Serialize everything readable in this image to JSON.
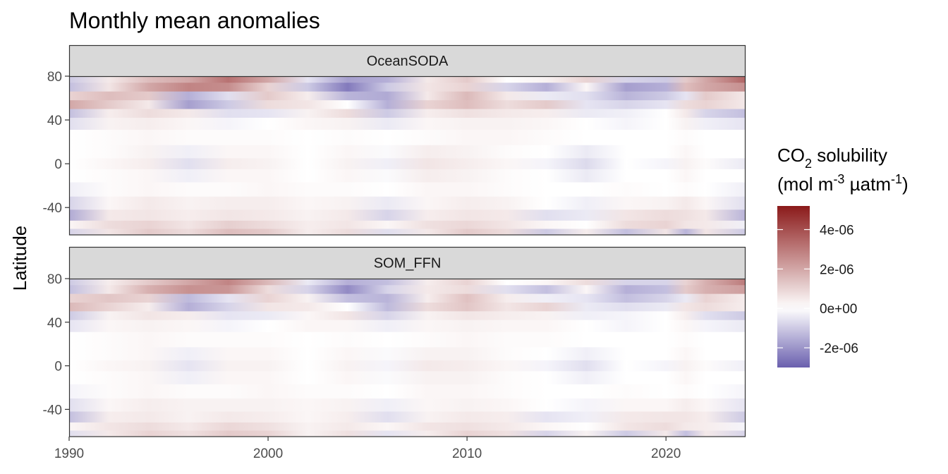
{
  "chart_data": {
    "type": "heatmap",
    "title": "Monthly mean anomalies",
    "ylabel": "Latitude",
    "xlabel": "",
    "xlim": [
      1990,
      2024
    ],
    "ylim": [
      -65,
      80
    ],
    "x_ticks": [
      1990,
      2000,
      2010,
      2020
    ],
    "x_tick_labels": [
      "1990",
      "2000",
      "2010",
      "2020"
    ],
    "y_ticks": [
      80,
      40,
      0,
      -40
    ],
    "y_tick_labels": [
      "80",
      "40",
      "0",
      "-40"
    ],
    "grid": false,
    "panels": [
      {
        "name": "OceanSODA",
        "bands": [
          {
            "lat": 78,
            "values": [
              -1.0,
              0.5,
              1.5,
              2.0,
              3.2,
              2.0,
              -0.5,
              -1.8,
              -1.5,
              0.5,
              1.2,
              0.0,
              0.3,
              1.0,
              -0.8,
              -1.0,
              1.2,
              2.0,
              3.5
            ]
          },
          {
            "lat": 70,
            "values": [
              -1.2,
              0.6,
              2.0,
              2.8,
              2.6,
              1.0,
              -1.0,
              -2.5,
              -1.0,
              0.6,
              1.0,
              -0.8,
              -1.5,
              0.2,
              -1.8,
              -1.5,
              1.5,
              2.0,
              2.5
            ]
          },
          {
            "lat": 62,
            "values": [
              1.0,
              1.5,
              1.2,
              -1.5,
              -0.6,
              1.2,
              0.4,
              -1.4,
              -1.6,
              0.5,
              1.6,
              0.5,
              -0.4,
              -0.6,
              -1.4,
              -1.0,
              -0.5,
              1.2,
              0.5
            ]
          },
          {
            "lat": 54,
            "values": [
              2.0,
              1.2,
              0.5,
              -1.8,
              -1.0,
              0.8,
              0.6,
              0.0,
              -1.5,
              1.0,
              1.5,
              0.8,
              1.2,
              -0.5,
              -0.8,
              -0.5,
              0.8,
              1.0,
              0.5
            ]
          },
          {
            "lat": 46,
            "values": [
              -1.2,
              0.4,
              0.8,
              0.5,
              -0.6,
              -0.5,
              0.3,
              0.8,
              -1.0,
              0.4,
              0.7,
              0.5,
              0.4,
              -0.4,
              -0.3,
              0.0,
              0.5,
              -0.8,
              -1.2
            ]
          },
          {
            "lat": 38,
            "values": [
              -0.6,
              0.3,
              0.4,
              0.2,
              -0.2,
              0.0,
              0.2,
              0.3,
              -0.4,
              0.2,
              0.3,
              0.3,
              0.2,
              0.0,
              -0.2,
              0.0,
              0.3,
              -0.3,
              -0.5
            ]
          },
          {
            "lat": 24,
            "values": [
              0.0,
              0.1,
              0.2,
              0.1,
              0.1,
              0.1,
              0.0,
              0.1,
              0.0,
              0.1,
              0.2,
              0.2,
              0.1,
              0.0,
              0.0,
              0.0,
              0.1,
              0.0,
              0.0
            ]
          },
          {
            "lat": 10,
            "values": [
              0.0,
              0.1,
              0.3,
              -0.3,
              0.2,
              0.2,
              0.0,
              0.2,
              -0.1,
              0.4,
              0.3,
              0.1,
              0.0,
              -0.4,
              0.0,
              0.0,
              0.2,
              0.0,
              0.0
            ]
          },
          {
            "lat": 0,
            "values": [
              0.0,
              0.2,
              0.4,
              -0.6,
              0.4,
              0.3,
              0.0,
              0.3,
              -0.3,
              0.6,
              0.4,
              0.2,
              -0.2,
              -0.7,
              0.0,
              -0.2,
              0.3,
              0.1,
              -0.4
            ]
          },
          {
            "lat": -10,
            "values": [
              0.0,
              0.1,
              0.2,
              -0.3,
              0.2,
              0.2,
              0.0,
              0.2,
              -0.1,
              0.4,
              0.3,
              0.1,
              0.0,
              -0.4,
              0.0,
              0.0,
              0.2,
              0.0,
              0.0
            ]
          },
          {
            "lat": -24,
            "values": [
              -0.3,
              0.1,
              0.2,
              0.1,
              0.1,
              0.2,
              0.1,
              0.1,
              0.0,
              0.2,
              0.2,
              0.1,
              0.0,
              0.0,
              0.1,
              0.0,
              0.1,
              0.0,
              -0.3
            ]
          },
          {
            "lat": -36,
            "values": [
              -0.8,
              0.2,
              0.5,
              0.3,
              0.4,
              0.4,
              0.2,
              0.3,
              -0.4,
              0.2,
              0.4,
              0.3,
              0.0,
              -0.3,
              0.2,
              0.3,
              0.5,
              0.2,
              -0.6
            ]
          },
          {
            "lat": -48,
            "values": [
              -1.6,
              0.5,
              0.6,
              0.4,
              0.6,
              0.5,
              0.3,
              0.5,
              -0.8,
              0.4,
              0.6,
              0.5,
              -0.6,
              -0.4,
              0.6,
              0.8,
              0.7,
              0.5,
              -1.4
            ]
          },
          {
            "lat": -56,
            "values": [
              0.2,
              0.8,
              1.0,
              0.6,
              1.1,
              0.8,
              0.4,
              0.6,
              0.2,
              0.7,
              0.9,
              0.6,
              0.2,
              0.0,
              0.8,
              1.0,
              0.6,
              0.5,
              -0.3
            ]
          },
          {
            "lat": -63,
            "values": [
              -0.8,
              0.6,
              1.2,
              0.8,
              1.5,
              1.2,
              0.4,
              0.8,
              -0.6,
              0.5,
              1.2,
              0.8,
              -1.0,
              0.4,
              -1.2,
              0.6,
              -1.4,
              0.6,
              -1.0
            ]
          }
        ]
      },
      {
        "name": "SOM_FFN",
        "bands": [
          {
            "lat": 78,
            "values": [
              -1.0,
              0.4,
              1.2,
              2.0,
              2.8,
              1.6,
              -0.4,
              -1.5,
              -1.2,
              0.4,
              1.0,
              0.0,
              0.2,
              0.8,
              -0.8,
              -0.8,
              1.0,
              1.8,
              3.0
            ]
          },
          {
            "lat": 70,
            "values": [
              -1.2,
              0.5,
              1.8,
              2.5,
              2.4,
              0.8,
              -0.8,
              -2.2,
              -0.8,
              0.5,
              0.8,
              -0.6,
              -1.2,
              0.2,
              -1.5,
              -1.2,
              1.2,
              1.8,
              2.2
            ]
          },
          {
            "lat": 62,
            "values": [
              1.0,
              1.3,
              1.0,
              -1.3,
              -0.5,
              1.0,
              0.3,
              -1.2,
              -1.4,
              0.4,
              1.4,
              0.4,
              -0.3,
              -0.5,
              -1.2,
              -0.8,
              -0.4,
              1.0,
              0.4
            ]
          },
          {
            "lat": 54,
            "values": [
              1.6,
              1.0,
              0.4,
              -1.5,
              -0.8,
              0.6,
              0.5,
              0.0,
              -1.3,
              0.8,
              1.3,
              0.6,
              1.0,
              -0.4,
              -0.6,
              -0.4,
              0.6,
              0.8,
              0.4
            ]
          },
          {
            "lat": 46,
            "values": [
              -1.0,
              0.3,
              0.6,
              0.4,
              -0.5,
              -0.4,
              0.2,
              0.6,
              -0.8,
              0.3,
              0.6,
              0.4,
              0.3,
              -0.3,
              -0.2,
              0.0,
              0.4,
              -0.6,
              -1.0
            ]
          },
          {
            "lat": 38,
            "values": [
              -0.5,
              0.2,
              0.3,
              0.2,
              -0.2,
              0.0,
              0.2,
              0.2,
              -0.3,
              0.2,
              0.3,
              0.2,
              0.2,
              0.0,
              -0.2,
              0.0,
              0.2,
              -0.2,
              -0.4
            ]
          },
          {
            "lat": 24,
            "values": [
              0.0,
              0.1,
              0.2,
              0.1,
              0.1,
              0.1,
              0.0,
              0.1,
              0.0,
              0.1,
              0.2,
              0.1,
              0.1,
              0.0,
              0.0,
              0.0,
              0.1,
              0.0,
              0.0
            ]
          },
          {
            "lat": 10,
            "values": [
              0.0,
              0.1,
              0.2,
              -0.3,
              0.2,
              0.2,
              0.0,
              0.2,
              -0.1,
              0.3,
              0.3,
              0.1,
              0.0,
              -0.3,
              0.0,
              0.0,
              0.2,
              0.0,
              0.0
            ]
          },
          {
            "lat": 0,
            "values": [
              0.0,
              0.2,
              0.3,
              -0.5,
              0.3,
              0.3,
              0.0,
              0.3,
              -0.2,
              0.5,
              0.4,
              0.2,
              -0.2,
              -0.6,
              0.0,
              -0.2,
              0.3,
              0.1,
              -0.3
            ]
          },
          {
            "lat": -10,
            "values": [
              0.0,
              0.1,
              0.2,
              -0.3,
              0.2,
              0.2,
              0.0,
              0.2,
              -0.1,
              0.3,
              0.3,
              0.1,
              0.0,
              -0.3,
              0.0,
              0.0,
              0.2,
              0.0,
              0.0
            ]
          },
          {
            "lat": -24,
            "values": [
              -0.2,
              0.1,
              0.2,
              0.1,
              0.1,
              0.2,
              0.1,
              0.1,
              0.0,
              0.2,
              0.2,
              0.1,
              0.0,
              0.0,
              0.1,
              0.0,
              0.1,
              0.0,
              -0.2
            ]
          },
          {
            "lat": -36,
            "values": [
              -0.6,
              0.2,
              0.4,
              0.3,
              0.3,
              0.3,
              0.2,
              0.3,
              -0.3,
              0.2,
              0.3,
              0.2,
              0.0,
              -0.2,
              0.2,
              0.2,
              0.4,
              0.2,
              -0.5
            ]
          },
          {
            "lat": -48,
            "values": [
              -1.2,
              0.4,
              0.5,
              0.3,
              0.5,
              0.4,
              0.2,
              0.4,
              -0.6,
              0.3,
              0.5,
              0.4,
              -0.5,
              -0.3,
              0.5,
              0.6,
              0.6,
              0.4,
              -1.0
            ]
          },
          {
            "lat": -56,
            "values": [
              0.2,
              0.6,
              0.8,
              0.5,
              0.9,
              0.7,
              0.3,
              0.5,
              0.2,
              0.6,
              0.7,
              0.5,
              0.2,
              0.0,
              0.6,
              0.8,
              0.5,
              0.4,
              -0.2
            ]
          },
          {
            "lat": -63,
            "values": [
              -0.6,
              0.5,
              1.0,
              0.7,
              1.2,
              1.0,
              0.3,
              0.7,
              -0.5,
              0.4,
              1.0,
              0.7,
              -0.8,
              0.3,
              -1.0,
              0.5,
              -1.2,
              0.5,
              -0.8
            ]
          }
        ],
        "note_units": "values in 1e-06"
      }
    ],
    "band_years": [
      1990,
      1992,
      1994,
      1996,
      1998,
      2000,
      2002,
      2004,
      2006,
      2008,
      2010,
      2012,
      2014,
      2016,
      2018,
      2020,
      2021,
      2022,
      2024
    ],
    "value_scale": 1e-06,
    "legend": {
      "title_parts": [
        "CO",
        "2",
        " solubility"
      ],
      "subtitle_parts": [
        "(mol m",
        "-3",
        " µatm",
        "-1",
        ")"
      ],
      "position": "right",
      "limits": [
        -3e-06,
        5.2e-06
      ],
      "breaks": [
        4e-06,
        2e-06,
        0,
        -2e-06
      ],
      "labels": [
        "4e-06",
        "2e-06",
        "0e+00",
        "-2e-06"
      ],
      "colors": {
        "low": "#6a5fae",
        "mid": "#ffffff",
        "high": "#8b1a1a"
      }
    }
  }
}
